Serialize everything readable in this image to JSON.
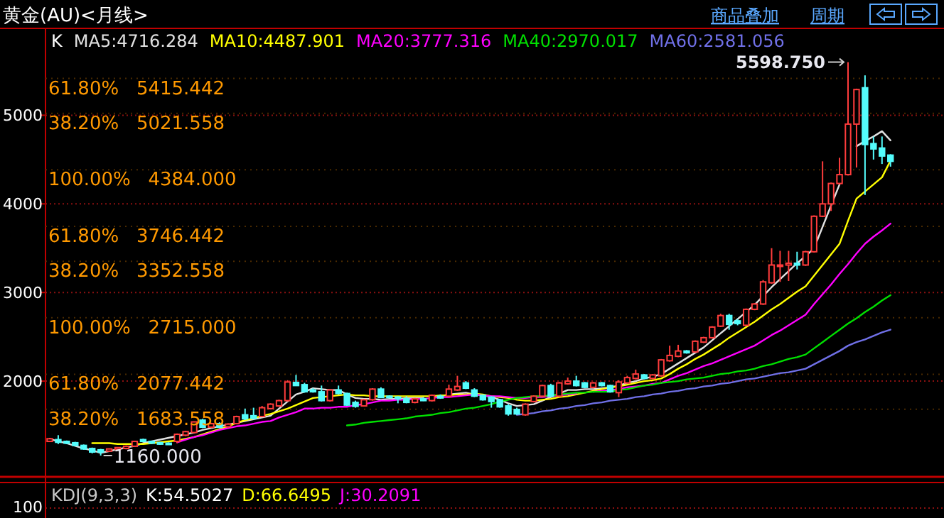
{
  "chart_data": [
    {
      "type": "candlestick",
      "title": "黄金(AU)<月线>",
      "legend_title": "K",
      "legend": "top left",
      "grid": "y",
      "ylim": [
        920,
        5980
      ],
      "yticks": [
        2000,
        3000,
        4000,
        5000
      ],
      "categories": [
        null,
        null,
        null,
        null,
        null,
        null,
        null,
        null,
        null,
        null,
        null,
        null,
        null,
        null,
        null,
        null,
        null,
        null,
        null,
        null,
        null,
        null,
        null,
        null,
        null,
        null,
        null,
        null,
        null,
        null,
        null,
        null,
        null,
        null,
        null,
        null,
        null,
        null,
        null,
        null,
        null,
        null,
        null,
        null,
        null,
        null,
        null,
        null,
        null,
        null,
        null,
        null,
        null,
        null,
        null,
        null,
        null,
        null,
        null,
        null,
        null,
        null,
        null,
        null,
        null,
        null,
        null,
        null,
        null,
        null,
        null,
        null,
        null,
        null,
        null,
        null,
        null,
        null,
        null,
        null,
        null,
        null,
        null,
        null,
        null,
        null,
        null,
        null,
        null,
        null,
        null,
        null,
        null,
        null,
        null,
        null,
        null,
        null,
        null,
        null
      ],
      "ohlc": [
        [
          1320,
          1355,
          1315,
          1350
        ],
        [
          1340,
          1390,
          1290,
          1310
        ],
        [
          1320,
          1330,
          1290,
          1300
        ],
        [
          1305,
          1315,
          1265,
          1275
        ],
        [
          1275,
          1285,
          1225,
          1235
        ],
        [
          1240,
          1250,
          1185,
          1200
        ],
        [
          1225,
          1235,
          1160,
          1200
        ],
        [
          1210,
          1240,
          1200,
          1235
        ],
        [
          1230,
          1255,
          1220,
          1250
        ],
        [
          1240,
          1275,
          1230,
          1265
        ],
        [
          1265,
          1325,
          1260,
          1320
        ],
        [
          1340,
          1350,
          1310,
          1320
        ],
        [
          1320,
          1325,
          1290,
          1300
        ],
        [
          1305,
          1315,
          1280,
          1290
        ],
        [
          1300,
          1310,
          1285,
          1290
        ],
        [
          1320,
          1410,
          1300,
          1400
        ],
        [
          1390,
          1440,
          1380,
          1430
        ],
        [
          1420,
          1545,
          1415,
          1540
        ],
        [
          1560,
          1575,
          1470,
          1480
        ],
        [
          1480,
          1530,
          1470,
          1520
        ],
        [
          1520,
          1535,
          1470,
          1480
        ],
        [
          1485,
          1525,
          1475,
          1515
        ],
        [
          1520,
          1610,
          1515,
          1600
        ],
        [
          1620,
          1690,
          1560,
          1575
        ],
        [
          1610,
          1700,
          1570,
          1580
        ],
        [
          1600,
          1720,
          1595,
          1700
        ],
        [
          1690,
          1750,
          1680,
          1740
        ],
        [
          1720,
          1790,
          1710,
          1780
        ],
        [
          1780,
          2010,
          1770,
          1990
        ],
        [
          1985,
          2070,
          1945,
          1950
        ],
        [
          1960,
          1980,
          1870,
          1880
        ],
        [
          1900,
          1920,
          1870,
          1880
        ],
        [
          1880,
          1950,
          1770,
          1780
        ],
        [
          1780,
          1910,
          1770,
          1900
        ],
        [
          1900,
          1950,
          1850,
          1860
        ],
        [
          1860,
          1870,
          1720,
          1730
        ],
        [
          1760,
          1780,
          1700,
          1715
        ],
        [
          1720,
          1800,
          1715,
          1790
        ],
        [
          1790,
          1920,
          1780,
          1910
        ],
        [
          1910,
          1930,
          1810,
          1815
        ],
        [
          1830,
          1840,
          1810,
          1815
        ],
        [
          1820,
          1830,
          1750,
          1800
        ],
        [
          1800,
          1830,
          1750,
          1760
        ],
        [
          1760,
          1810,
          1750,
          1800
        ],
        [
          1800,
          1820,
          1775,
          1780
        ],
        [
          1780,
          1850,
          1770,
          1840
        ],
        [
          1830,
          1850,
          1800,
          1810
        ],
        [
          1830,
          1960,
          1820,
          1910
        ],
        [
          1900,
          2060,
          1890,
          1940
        ],
        [
          1980,
          2000,
          1910,
          1920
        ],
        [
          1900,
          1920,
          1820,
          1830
        ],
        [
          1840,
          1850,
          1780,
          1790
        ],
        [
          1820,
          1830,
          1700,
          1770
        ],
        [
          1790,
          1800,
          1700,
          1710
        ],
        [
          1720,
          1740,
          1610,
          1630
        ],
        [
          1680,
          1700,
          1620,
          1630
        ],
        [
          1620,
          1750,
          1610,
          1740
        ],
        [
          1770,
          1840,
          1760,
          1830
        ],
        [
          1830,
          1960,
          1820,
          1950
        ],
        [
          1950,
          1970,
          1820,
          1830
        ],
        [
          1830,
          1990,
          1820,
          1980
        ],
        [
          1970,
          2040,
          1960,
          2000
        ],
        [
          2000,
          2060,
          1940,
          1950
        ],
        [
          1980,
          1990,
          1920,
          1930
        ],
        [
          1930,
          1990,
          1920,
          1980
        ],
        [
          1980,
          1990,
          1940,
          1950
        ],
        [
          1950,
          1960,
          1870,
          1880
        ],
        [
          1870,
          2010,
          1820,
          1990
        ],
        [
          1980,
          2060,
          1970,
          2040
        ],
        [
          2030,
          2130,
          2020,
          2080
        ],
        [
          2070,
          2080,
          2020,
          2030
        ],
        [
          2030,
          2080,
          2020,
          2070
        ],
        [
          2060,
          2250,
          2050,
          2240
        ],
        [
          2230,
          2400,
          2220,
          2290
        ],
        [
          2280,
          2410,
          2270,
          2340
        ],
        [
          2340,
          2350,
          2310,
          2320
        ],
        [
          2330,
          2460,
          2320,
          2450
        ],
        [
          2440,
          2500,
          2430,
          2490
        ],
        [
          2490,
          2620,
          2480,
          2610
        ],
        [
          2620,
          2760,
          2610,
          2740
        ],
        [
          2740,
          2760,
          2580,
          2640
        ],
        [
          2680,
          2700,
          2630,
          2650
        ],
        [
          2630,
          2820,
          2620,
          2810
        ],
        [
          2810,
          2880,
          2800,
          2870
        ],
        [
          2870,
          3140,
          2860,
          3120
        ],
        [
          3110,
          3500,
          3100,
          3310
        ],
        [
          3300,
          3470,
          3120,
          3310
        ],
        [
          3310,
          3470,
          3130,
          3330
        ],
        [
          3330,
          3460,
          3260,
          3310
        ],
        [
          3310,
          3470,
          3300,
          3460
        ],
        [
          3460,
          3870,
          3450,
          3860
        ],
        [
          3860,
          4480,
          3850,
          4000
        ],
        [
          4000,
          4240,
          3920,
          4230
        ],
        [
          4230,
          4520,
          4220,
          4330
        ],
        [
          4330,
          5598.75,
          4320,
          4900
        ],
        [
          4900,
          5300,
          4410,
          5290
        ],
        [
          5310,
          5450,
          4100,
          4670
        ],
        [
          4680,
          4760,
          4500,
          4620
        ],
        [
          4630,
          4760,
          4450,
          4540
        ],
        [
          4550,
          4560,
          4420,
          4480
        ]
      ],
      "series": [
        {
          "name": "MA5:4716.284",
          "type": "line",
          "color": "#e0e0e0",
          "values": [
            1350,
            1320,
            1300,
            1270,
            1240,
            1220,
            1190,
            1210,
            1230,
            1250,
            1270,
            1300,
            1320,
            1340,
            1360,
            1380,
            1400,
            1420,
            1450,
            1470,
            1490,
            1510,
            1530,
            1550,
            1570,
            1590,
            1610,
            1690,
            1770,
            1850,
            1880,
            1920,
            1910,
            1900,
            1900,
            1850,
            1810,
            1800,
            1800,
            1790,
            1800,
            1800,
            1810,
            1810,
            1810,
            null,
            1830,
            1850,
            1860,
            1870,
            1850,
            1840,
            1820,
            1790,
            1750,
            1720,
            1730,
            1740,
            1780,
            1820,
            1860,
            1900,
            1900,
            1910,
            1910,
            1920,
            1930,
            1950,
            1980,
            2000,
            2030,
            2050,
            2080,
            2140,
            2200,
            2260,
            2320,
            2380,
            2460,
            2540,
            2620,
            2700,
            2780,
            2860,
            2960,
            3060,
            3150,
            3240,
            3330,
            3410,
            3500,
            3740,
            3980,
            4220,
            null,
            4650,
            4710,
            4760,
            4820,
            4716.284
          ]
        },
        {
          "name": "MA10:4487.901",
          "type": "line",
          "color": "#ffff00",
          "values": [
            null,
            null,
            null,
            null,
            null,
            1300,
            1300,
            1300,
            1290,
            1290,
            1290,
            1290,
            1300,
            1310,
            1320,
            1330,
            1350,
            1370,
            1400,
            1430,
            1460,
            1490,
            1530,
            1560,
            1580,
            1610,
            1630,
            1660,
            1690,
            1730,
            1770,
            1810,
            1820,
            1830,
            1840,
            1850,
            1840,
            1840,
            1830,
            1830,
            1830,
            1830,
            1830,
            1830,
            1830,
            1830,
            1840,
            1840,
            1850,
            1850,
            1860,
            1850,
            1830,
            1820,
            1810,
            1790,
            1780,
            1780,
            1790,
            1800,
            1820,
            1830,
            1850,
            1870,
            1890,
            1910,
            1930,
            1940,
            1960,
            1980,
            2000,
            2010,
            2030,
            2080,
            2140,
            2190,
            2250,
            2300,
            2360,
            2420,
            2490,
            2550,
            2610,
            2670,
            2740,
            2810,
            2870,
            2940,
            3010,
            3070,
            3190,
            3310,
            3430,
            3550,
            3810,
            4060,
            4140,
            4220,
            4300,
            4487.901
          ]
        },
        {
          "name": "MA20:3777.316",
          "type": "line",
          "color": "#ff00ff",
          "values": [
            null,
            null,
            null,
            null,
            null,
            null,
            null,
            null,
            null,
            null,
            null,
            null,
            null,
            null,
            null,
            1310,
            1340,
            1370,
            1390,
            1420,
            1450,
            1470,
            1490,
            1500,
            1520,
            1540,
            1550,
            1590,
            1620,
            1650,
            1690,
            1690,
            1700,
            1700,
            1710,
            1710,
            1730,
            1740,
            1760,
            1780,
            1780,
            1790,
            1790,
            1800,
            1800,
            1810,
            1820,
            1820,
            1830,
            1840,
            1850,
            1840,
            1830,
            1830,
            1820,
            1810,
            1810,
            1820,
            1820,
            1830,
            1840,
            1850,
            1860,
            null,
            1880,
            1890,
            1900,
            1910,
            1930,
            1940,
            1950,
            1970,
            1980,
            2020,
            2060,
            2090,
            2130,
            2170,
            2200,
            2240,
            2280,
            2320,
            2360,
            2400,
            2460,
            2520,
            2570,
            2630,
            2690,
            2750,
            2870,
            2980,
            3090,
            3210,
            3320,
            3440,
            3550,
            3630,
            3700,
            3777.316
          ]
        },
        {
          "name": "MA40:2970.017",
          "type": "line",
          "color": "#00e000",
          "values": [
            null,
            null,
            null,
            null,
            null,
            null,
            null,
            null,
            null,
            null,
            null,
            null,
            null,
            null,
            null,
            null,
            null,
            null,
            null,
            null,
            null,
            null,
            null,
            null,
            null,
            null,
            null,
            null,
            null,
            null,
            null,
            null,
            null,
            null,
            null,
            1500,
            1510,
            1530,
            1540,
            1550,
            1560,
            1570,
            1580,
            1600,
            1610,
            1620,
            1640,
            1650,
            1670,
            1690,
            1700,
            1720,
            1740,
            1770,
            1790,
            1810,
            1820,
            1830,
            1830,
            1840,
            1850,
            1860,
            1870,
            1870,
            1880,
            1880,
            1880,
            1900,
            1910,
            1930,
            1950,
            1960,
            1980,
            1990,
            2000,
            2020,
            2030,
            2040,
            2060,
            2080,
            2090,
            2110,
            2120,
            2140,
            2170,
            2190,
            2220,
            2250,
            2270,
            2300,
            2370,
            2440,
            2510,
            2580,
            2650,
            2710,
            2780,
            2840,
            2910,
            2970.017
          ]
        },
        {
          "name": "MA60:2581.056",
          "type": "line",
          "color": "#7070e8",
          "values": [
            null,
            null,
            null,
            null,
            null,
            null,
            null,
            null,
            null,
            null,
            null,
            null,
            null,
            null,
            null,
            null,
            null,
            null,
            null,
            null,
            null,
            null,
            null,
            null,
            null,
            null,
            null,
            null,
            null,
            null,
            null,
            null,
            null,
            null,
            null,
            null,
            null,
            null,
            null,
            null,
            null,
            null,
            null,
            null,
            null,
            null,
            null,
            null,
            null,
            null,
            null,
            null,
            null,
            null,
            null,
            1620,
            1630,
            1640,
            1660,
            1670,
            1690,
            1700,
            1720,
            1730,
            1750,
            1760,
            1780,
            1790,
            1800,
            1820,
            1830,
            1850,
            1860,
            1880,
            1890,
            1910,
            1920,
            1940,
            1950,
            1970,
            1980,
            2000,
            2020,
            2030,
            2050,
            2070,
            2090,
            2100,
            2120,
            2140,
            2190,
            2240,
            2290,
            2340,
            2400,
            2440,
            2470,
            2510,
            2550,
            2581.056
          ]
        }
      ],
      "ref_lines": [
        {
          "axis": "y",
          "value": 5415.442,
          "label": "61.80%   5415.442"
        },
        {
          "axis": "y",
          "value": 5021.558,
          "label": "38.20%   5021.558"
        },
        {
          "axis": "y",
          "value": 4384,
          "label": "100.00%   4384.000"
        },
        {
          "axis": "y",
          "value": 3746.442,
          "label": "61.80%   3746.442"
        },
        {
          "axis": "y",
          "value": 3352.558,
          "label": "38.20%   3352.558"
        },
        {
          "axis": "y",
          "value": 2715,
          "label": "100.00%   2715.000"
        },
        {
          "axis": "y",
          "value": 2077.442,
          "label": "61.80%   2077.442"
        },
        {
          "axis": "y",
          "value": 1683.558,
          "label": "38.20%   1683.558"
        }
      ],
      "annotations": [
        "商品叠加",
        "周期",
        "5598.750",
        "1160.000"
      ]
    },
    {
      "type": "other",
      "annotations": [
        "KDJ(9,3,3)",
        "K:54.5027",
        "D:66.6495",
        "J:30.2091",
        "100"
      ]
    }
  ]
}
